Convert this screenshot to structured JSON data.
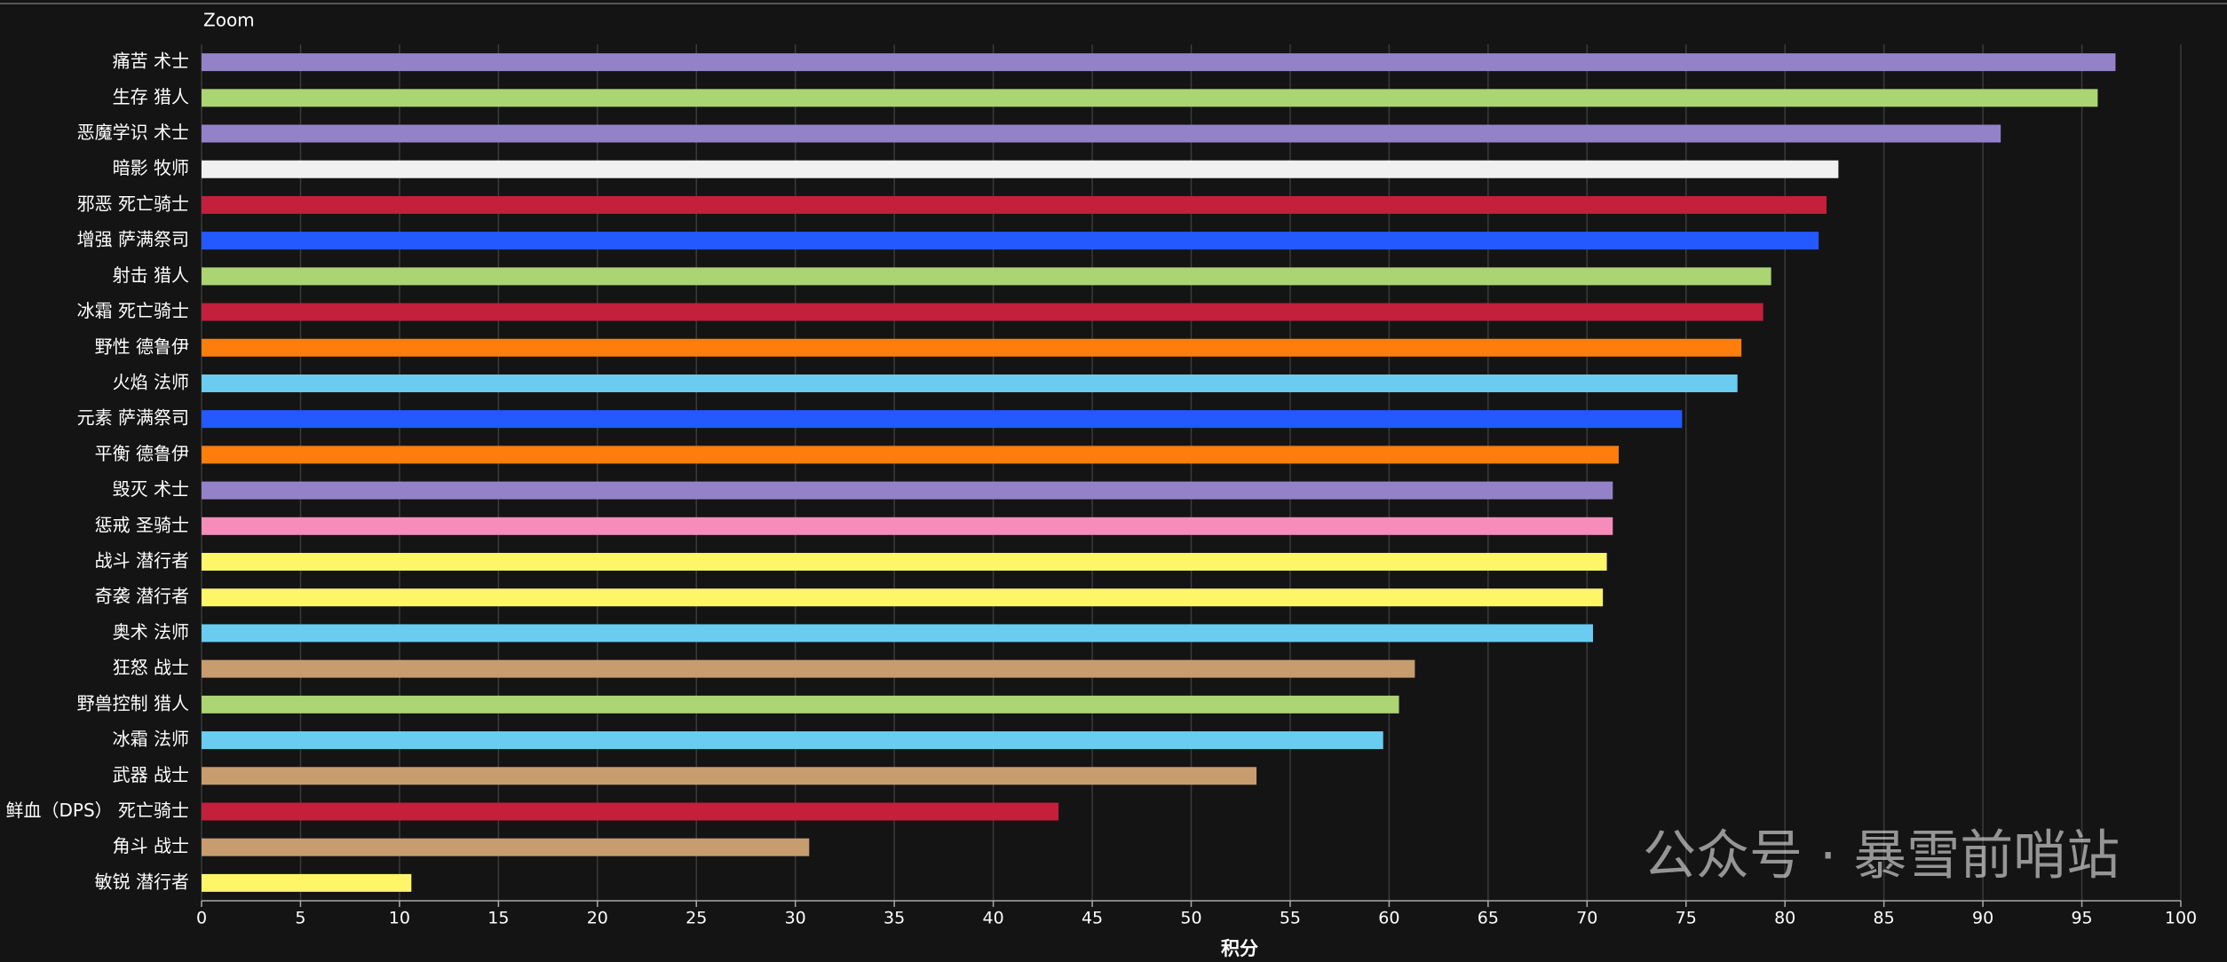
{
  "chart_data": {
    "type": "hbar",
    "zoom_label": "Zoom",
    "xlabel": "积分",
    "watermark": "公众号 · 暴雪前哨站",
    "categories": [
      "痛苦 术士",
      "生存 猎人",
      "恶魔学识 术士",
      "暗影 牧师",
      "邪恶 死亡骑士",
      "增强 萨满祭司",
      "射击 猎人",
      "冰霜 死亡骑士",
      "野性 德鲁伊",
      "火焰 法师",
      "元素 萨满祭司",
      "平衡 德鲁伊",
      "毁灭 术士",
      "惩戒 圣骑士",
      "战斗 潜行者",
      "奇袭 潜行者",
      "奥术 法师",
      "狂怒 战士",
      "野兽控制 猎人",
      "冰霜 法师",
      "武器 战士",
      "鲜血（DPS） 死亡骑士",
      "角斗 战士",
      "敏锐 潜行者"
    ],
    "values": [
      96.7,
      95.8,
      90.9,
      82.7,
      82.1,
      81.7,
      79.3,
      78.9,
      77.8,
      77.6,
      74.8,
      71.6,
      71.3,
      71.3,
      71.0,
      70.8,
      70.3,
      61.3,
      60.5,
      59.7,
      53.3,
      43.3,
      30.7,
      10.6
    ],
    "colors": [
      "#9482c9",
      "#abd473",
      "#9482c9",
      "#f0f0f0",
      "#c41f3b",
      "#2459ff",
      "#abd473",
      "#c41f3b",
      "#ff7d0a",
      "#69ccf0",
      "#2459ff",
      "#ff7d0a",
      "#9482c9",
      "#f58cba",
      "#fff569",
      "#fff569",
      "#69ccf0",
      "#c79c6e",
      "#abd473",
      "#69ccf0",
      "#c79c6e",
      "#c41f3b",
      "#c79c6e",
      "#fff569"
    ],
    "xlim": [
      0,
      100
    ],
    "xticks": [
      0,
      5,
      10,
      15,
      20,
      25,
      30,
      35,
      40,
      45,
      50,
      55,
      60,
      65,
      70,
      75,
      80,
      85,
      90,
      95,
      100
    ],
    "grid": true
  }
}
